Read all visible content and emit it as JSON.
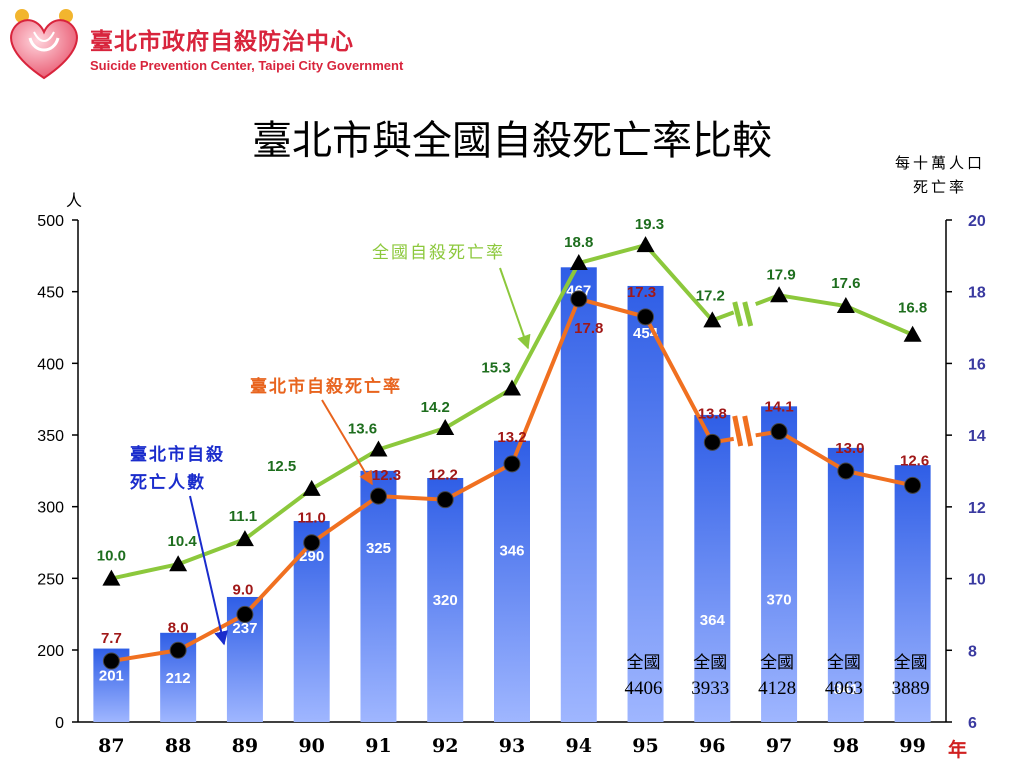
{
  "header": {
    "org_name": "臺北市政府自殺防治中心",
    "org_name_en": "Suicide Prevention Center, Taipei City Government"
  },
  "chart_data": {
    "type": "bar",
    "title": "臺北市與全國自殺死亡率比較",
    "categories": [
      "87",
      "88",
      "89",
      "90",
      "91",
      "92",
      "93",
      "94",
      "95",
      "96",
      "97",
      "98",
      "99"
    ],
    "xlabel": "年",
    "ylabel": "人",
    "y2label": [
      "每十萬人口",
      "死亡率"
    ],
    "ylim": [
      0,
      500
    ],
    "yticks": [
      "0",
      "200",
      "250",
      "300",
      "350",
      "400",
      "450",
      "500"
    ],
    "y2lim": [
      6,
      20
    ],
    "y2ticks": [
      "6",
      "8",
      "10",
      "12",
      "14",
      "16",
      "18",
      "20"
    ],
    "axis_break": true,
    "series": [
      {
        "name": "臺北市自殺死亡人數",
        "kind": "bar",
        "axis": "left",
        "values": [
          201,
          212,
          237,
          290,
          325,
          320,
          346,
          467,
          454,
          364,
          370,
          341,
          329
        ],
        "color": "#3a68e8"
      },
      {
        "name": "臺北市自殺死亡率",
        "kind": "line",
        "axis": "right",
        "values": [
          7.7,
          8.0,
          9.0,
          11.0,
          12.3,
          12.2,
          13.2,
          17.8,
          17.3,
          13.8,
          14.1,
          13.0,
          12.6
        ],
        "color": "#f07020",
        "label_color": "#a01818"
      },
      {
        "name": "全國自殺死亡率",
        "kind": "line",
        "axis": "right",
        "values": [
          10.0,
          10.4,
          11.1,
          12.5,
          13.6,
          14.2,
          15.3,
          18.8,
          19.3,
          17.2,
          17.9,
          17.6,
          16.8
        ],
        "color": "#8cc83c",
        "label_color": "#1e6e1e"
      }
    ],
    "series_labels": {
      "national_rate": "全國自殺死亡率",
      "taipei_rate": "臺北市自殺死亡率",
      "taipei_count": [
        "臺北市自殺",
        "死亡人數"
      ]
    },
    "national_counts": [
      {
        "year": "95",
        "label": "全國",
        "value": "4406"
      },
      {
        "year": "96",
        "label": "全國",
        "value": "3933"
      },
      {
        "year": "97",
        "label": "全國",
        "value": "4128"
      },
      {
        "year": "98",
        "label": "全國",
        "value": "4063"
      },
      {
        "year": "99",
        "label": "全國",
        "value": "3889"
      }
    ],
    "colors": {
      "bar_top": "#2f5ee6",
      "bar_bottom": "#9fb6ff",
      "taipei_line": "#f07020",
      "national_line": "#8cc83c",
      "taipei_label": "#a01818",
      "national_label": "#1e6e1e",
      "right_axis": "#3a3aa0",
      "annotation_blue": "#1a2ccc",
      "annotation_orange": "#e8641e",
      "year_unit": "#d02020"
    },
    "grid": false,
    "legend": "none"
  }
}
